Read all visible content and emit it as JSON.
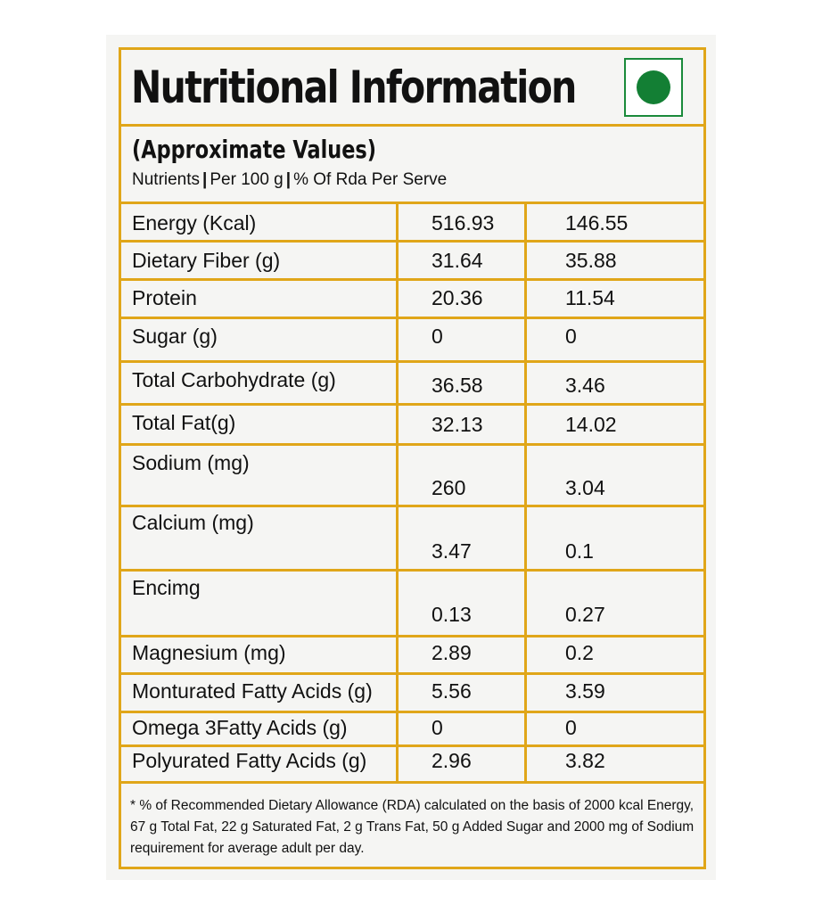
{
  "title": "Nutritional Information",
  "subtitle": "(Approximate Values)",
  "columns": {
    "nutrients": "Nutrients",
    "per100": "Per 100 g",
    "rda": "% Of Rda Per Serve",
    "separator": "|"
  },
  "rows": [
    {
      "name": "Energy (Kcal)",
      "per100": "516.93",
      "rda": "146.55"
    },
    {
      "name": "Dietary Fiber (g)",
      "per100": "31.64",
      "rda": "35.88"
    },
    {
      "name": "Protein",
      "per100": "20.36",
      "rda": "11.54"
    },
    {
      "name": "Sugar (g)",
      "per100": "0",
      "rda": "0"
    },
    {
      "name": "Total Carbohydrate (g)",
      "per100": "36.58",
      "rda": "3.46"
    },
    {
      "name": "Total Fat(g)",
      "per100": "32.13",
      "rda": "14.02"
    },
    {
      "name": "Sodium (mg)",
      "per100": "260",
      "rda": "3.04"
    },
    {
      "name": "Calcium (mg)",
      "per100": "3.47",
      "rda": "0.1"
    },
    {
      "name": "Encimg",
      "per100": "0.13",
      "rda": "0.27"
    },
    {
      "name": "Magnesium (mg)",
      "per100": "2.89",
      "rda": "0.2"
    },
    {
      "name": "Monturated Fatty Acids (g)",
      "per100": "5.56",
      "rda": "3.59"
    },
    {
      "name": "Omega 3Fatty Acids (g)",
      "per100": "0",
      "rda": "0"
    },
    {
      "name": "Polyurated Fatty Acids (g)",
      "per100": "2.96",
      "rda": "3.82"
    }
  ],
  "footnote": "* % of Recommended Dietary Allowance (RDA) calculated on the basis of 2000 kcal Energy, 67 g Total Fat, 22 g Saturated Fat, 2 g Trans Fat, 50 g Added Sugar and 2000 mg of Sodium requirement for average adult per day.",
  "icons": {
    "veg_mark": "vegetarian-mark-icon"
  },
  "colors": {
    "border": "#e0a619",
    "veg_green": "#137f34",
    "background": "#f5f5f3"
  }
}
